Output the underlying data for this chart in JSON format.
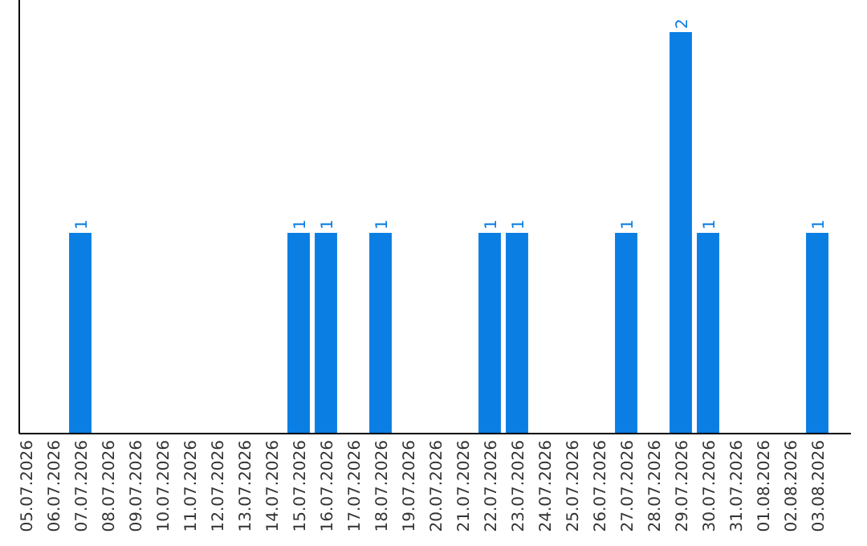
{
  "chart_data": {
    "type": "bar",
    "categories": [
      "05.07.2026",
      "06.07.2026",
      "07.07.2026",
      "08.07.2026",
      "09.07.2026",
      "10.07.2026",
      "11.07.2026",
      "12.07.2026",
      "13.07.2026",
      "14.07.2026",
      "15.07.2026",
      "16.07.2026",
      "17.07.2026",
      "18.07.2026",
      "19.07.2026",
      "20.07.2026",
      "21.07.2026",
      "22.07.2026",
      "23.07.2026",
      "24.07.2026",
      "25.07.2026",
      "26.07.2026",
      "27.07.2026",
      "28.07.2026",
      "29.07.2026",
      "30.07.2026",
      "31.07.2026",
      "01.08.2026",
      "02.08.2026",
      "03.08.2026"
    ],
    "values": [
      0,
      0,
      1,
      0,
      0,
      0,
      0,
      0,
      0,
      0,
      1,
      1,
      0,
      1,
      0,
      0,
      0,
      1,
      1,
      0,
      0,
      0,
      1,
      0,
      2,
      1,
      0,
      0,
      0,
      1
    ],
    "value_labels": [
      null,
      null,
      "1",
      null,
      null,
      null,
      null,
      null,
      null,
      null,
      "1",
      "1",
      null,
      "1",
      null,
      null,
      null,
      "1",
      "1",
      null,
      null,
      null,
      "1",
      null,
      "2",
      "1",
      null,
      null,
      null,
      "1"
    ],
    "color": "#0a7ee3",
    "ylim": [
      0,
      2
    ],
    "tick_labels": "x"
  }
}
